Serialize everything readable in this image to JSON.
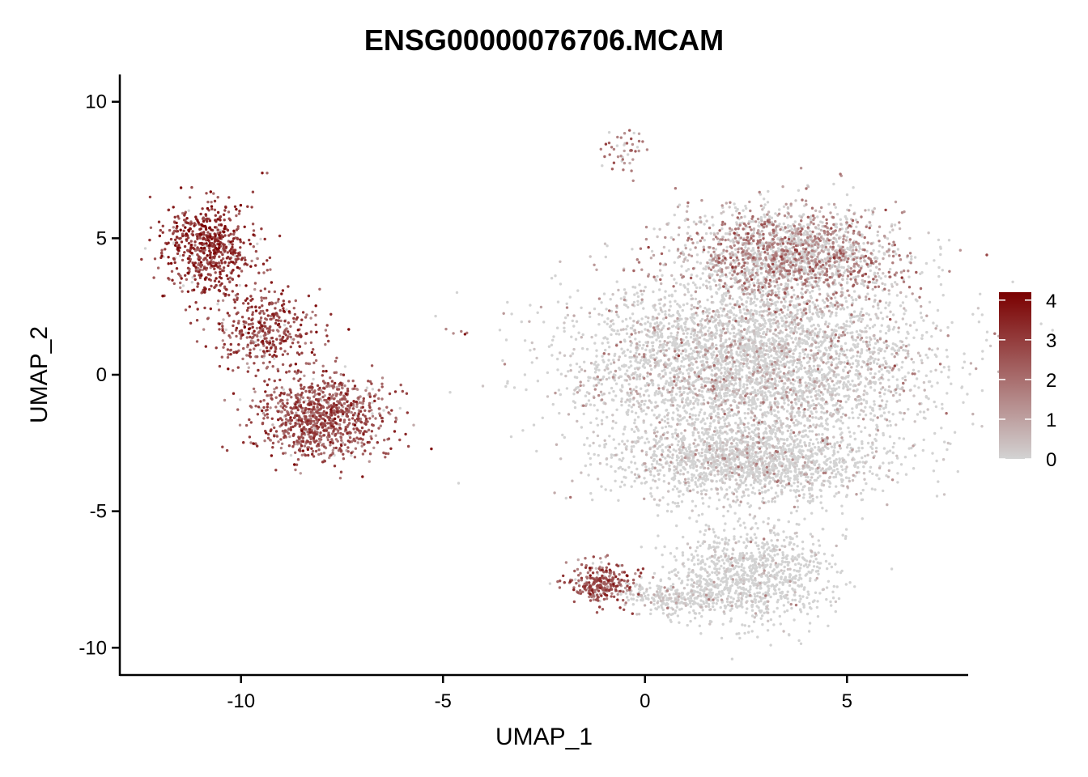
{
  "chart_data": {
    "type": "scatter",
    "title": "ENSG00000076706.MCAM",
    "xlabel": "UMAP_1",
    "ylabel": "UMAP_2",
    "xlim": [
      -13,
      8
    ],
    "ylim": [
      -11,
      11
    ],
    "xticks": [
      -10,
      -5,
      0,
      5
    ],
    "yticks": [
      -10,
      -5,
      0,
      5,
      10
    ],
    "xtick_labels": [
      "-10",
      "-5",
      "0",
      "5"
    ],
    "ytick_labels": [
      "-10",
      "-5",
      "0",
      "5",
      "10"
    ],
    "grid": false,
    "legend": {
      "placement": "right",
      "type": "colorbar",
      "min": 0,
      "max": 4.2,
      "ticks": [
        0,
        1,
        2,
        3,
        4
      ],
      "tick_labels": [
        "0",
        "1",
        "2",
        "3",
        "4"
      ],
      "low_color": "#d3d3d3",
      "high_color": "#7a0000"
    },
    "clusters": [
      {
        "name": "upper-left lobe",
        "center": [
          -10.8,
          4.6
        ],
        "spread": [
          0.75,
          1.1
        ],
        "count": 650,
        "expression_mean": 3.1
      },
      {
        "name": "left arm",
        "center": [
          -9.4,
          1.6
        ],
        "spread": [
          0.8,
          0.9
        ],
        "count": 380,
        "expression_mean": 2.7
      },
      {
        "name": "lower-left blob",
        "center": [
          -8.0,
          -1.5
        ],
        "spread": [
          1.05,
          1.05
        ],
        "count": 950,
        "expression_mean": 2.4
      },
      {
        "name": "small bridge",
        "center": [
          -4.7,
          1.6
        ],
        "spread": [
          0.4,
          0.08
        ],
        "count": 5,
        "expression_mean": 2.0
      },
      {
        "name": "top streak",
        "center": [
          -0.5,
          8.2
        ],
        "spread": [
          0.35,
          0.5
        ],
        "count": 45,
        "expression_mean": 1.8
      },
      {
        "name": "main upper-right",
        "center": [
          3.6,
          4.4
        ],
        "spread": [
          1.8,
          1.2
        ],
        "count": 1900,
        "expression_mean": 1.3
      },
      {
        "name": "main center",
        "center": [
          2.6,
          0.4
        ],
        "spread": [
          2.9,
          2.1
        ],
        "count": 4200,
        "expression_mean": 0.55
      },
      {
        "name": "main lower",
        "center": [
          2.6,
          -3.2
        ],
        "spread": [
          2.2,
          1.0
        ],
        "count": 1700,
        "expression_mean": 0.35
      },
      {
        "name": "lower tail",
        "center": [
          2.6,
          -7.4
        ],
        "spread": [
          1.3,
          1.2
        ],
        "count": 1000,
        "expression_mean": 0.15
      },
      {
        "name": "bottom-left hook",
        "center": [
          -1.1,
          -7.6
        ],
        "spread": [
          0.55,
          0.5
        ],
        "count": 280,
        "expression_mean": 2.3
      },
      {
        "name": "hook bridge",
        "center": [
          0.6,
          -8.1
        ],
        "spread": [
          0.9,
          0.4
        ],
        "count": 260,
        "expression_mean": 0.3
      }
    ]
  }
}
